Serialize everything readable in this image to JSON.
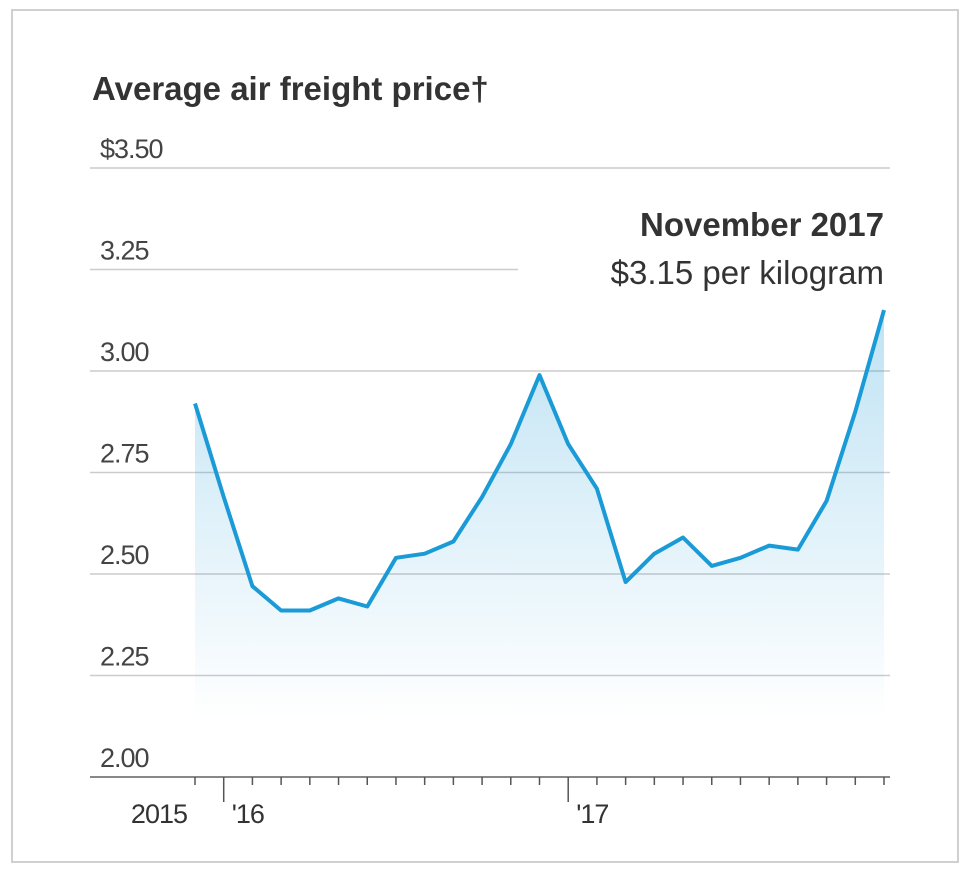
{
  "chart_data": {
    "type": "line",
    "title": "Average air freight price†",
    "annotation": {
      "title": "November 2017",
      "text": "$3.15 per kilogram"
    },
    "categories": [
      "2015",
      "'16",
      null,
      null,
      null,
      null,
      null,
      null,
      null,
      null,
      null,
      null,
      null,
      "'17",
      null,
      null,
      null,
      null,
      null,
      null,
      null,
      null,
      null,
      null,
      null
    ],
    "series": [
      {
        "name": "Average air freight price",
        "color": "#1a9ad6",
        "values": [
          2.92,
          2.69,
          2.47,
          2.41,
          2.41,
          2.44,
          2.42,
          2.54,
          2.55,
          2.58,
          2.69,
          2.82,
          2.99,
          2.82,
          2.71,
          2.48,
          2.55,
          2.59,
          2.52,
          2.54,
          2.57,
          2.56,
          2.68,
          2.9,
          3.15
        ]
      }
    ],
    "ylim": [
      2.0,
      3.5
    ],
    "yticks": [
      {
        "value": 2.0,
        "label": "2.00"
      },
      2.25,
      {
        "value": 2.5,
        "label": "2.50"
      },
      2.75,
      {
        "value": 3.0,
        "label": "3.00"
      },
      3.25,
      {
        "value": 3.5,
        "label": "$3.50"
      }
    ],
    "grid": true
  }
}
